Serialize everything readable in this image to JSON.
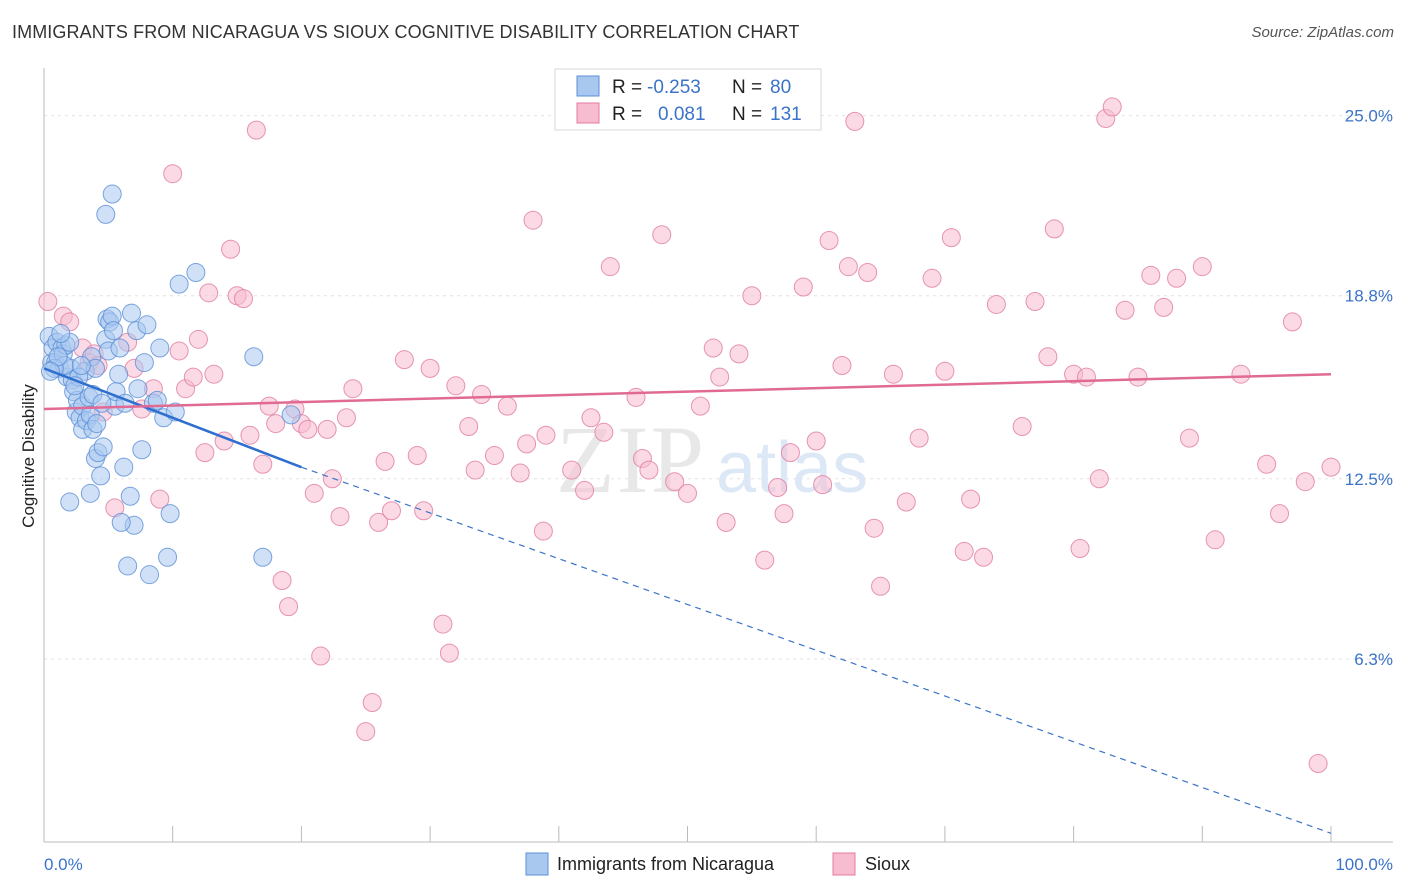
{
  "title": "IMMIGRANTS FROM NICARAGUA VS SIOUX COGNITIVE DISABILITY CORRELATION CHART",
  "source": "Source: ZipAtlas.com",
  "watermark": {
    "zip": "ZIP",
    "atlas": "atlas"
  },
  "legend": {
    "rows": [
      {
        "r_label": "R =",
        "r_value": "-0.253",
        "n_label": "N =",
        "n_value": "80",
        "color": "#a9c8f0",
        "stroke": "#5b8fd6"
      },
      {
        "r_label": "R =",
        "r_value": "0.081",
        "n_label": "N =",
        "n_value": "131",
        "color": "#f7bcd0",
        "stroke": "#e07ca0"
      }
    ]
  },
  "bottom_legend": [
    {
      "label": "Immigrants from Nicaragua",
      "color": "#a9c8f0",
      "stroke": "#5b8fd6"
    },
    {
      "label": "Sioux",
      "color": "#f7bcd0",
      "stroke": "#e07ca0"
    }
  ],
  "chart_data": {
    "type": "scatter",
    "title": "IMMIGRANTS FROM NICARAGUA VS SIOUX COGNITIVE DISABILITY CORRELATION CHART",
    "xlabel": "",
    "ylabel": "Cognitive Disability",
    "xlim": [
      0,
      100
    ],
    "ylim": [
      0,
      26.5
    ],
    "y_ticks": [
      6.3,
      12.5,
      18.8,
      25.0
    ],
    "y_tick_labels": [
      "6.3%",
      "12.5%",
      "18.8%",
      "25.0%"
    ],
    "x_tick_labels": [
      "0.0%",
      "100.0%"
    ],
    "grid": true,
    "series": [
      {
        "name": "Immigrants from Nicaragua",
        "color": "#a9c8f0",
        "stroke": "#5b8fd6",
        "trend": {
          "x0": 0,
          "y0": 16.3,
          "x1": 20,
          "y1": 12.9,
          "dash_to_x": 100,
          "dash_to_y": 0.3
        },
        "points": [
          [
            0.4,
            17.4
          ],
          [
            0.6,
            16.5
          ],
          [
            0.7,
            17.0
          ],
          [
            0.9,
            16.5
          ],
          [
            1.0,
            17.2
          ],
          [
            1.2,
            16.3
          ],
          [
            1.4,
            17.0
          ],
          [
            1.5,
            16.8
          ],
          [
            1.7,
            17.1
          ],
          [
            1.8,
            16.0
          ],
          [
            2.0,
            17.2
          ],
          [
            2.1,
            16.3
          ],
          [
            2.2,
            15.9
          ],
          [
            2.3,
            15.5
          ],
          [
            2.5,
            14.8
          ],
          [
            2.6,
            15.2
          ],
          [
            2.8,
            14.6
          ],
          [
            3.0,
            15.0
          ],
          [
            3.0,
            14.2
          ],
          [
            3.2,
            16.2
          ],
          [
            3.3,
            14.5
          ],
          [
            3.5,
            15.3
          ],
          [
            3.6,
            14.7
          ],
          [
            3.7,
            16.7
          ],
          [
            3.8,
            14.2
          ],
          [
            4.0,
            16.3
          ],
          [
            4.0,
            13.2
          ],
          [
            4.2,
            13.4
          ],
          [
            4.4,
            12.6
          ],
          [
            4.6,
            13.6
          ],
          [
            4.8,
            17.3
          ],
          [
            4.9,
            18.0
          ],
          [
            5.0,
            16.9
          ],
          [
            5.1,
            17.9
          ],
          [
            5.3,
            18.1
          ],
          [
            5.4,
            17.6
          ],
          [
            5.5,
            15.0
          ],
          [
            5.6,
            15.5
          ],
          [
            5.8,
            16.1
          ],
          [
            5.9,
            17.0
          ],
          [
            6.2,
            12.9
          ],
          [
            6.3,
            15.1
          ],
          [
            6.5,
            9.5
          ],
          [
            6.7,
            11.9
          ],
          [
            6.8,
            18.2
          ],
          [
            7.0,
            10.9
          ],
          [
            7.2,
            17.6
          ],
          [
            7.3,
            15.6
          ],
          [
            7.6,
            13.5
          ],
          [
            7.8,
            16.5
          ],
          [
            8.0,
            17.8
          ],
          [
            8.2,
            9.2
          ],
          [
            8.5,
            15.1
          ],
          [
            8.8,
            15.2
          ],
          [
            9.0,
            17.0
          ],
          [
            9.3,
            14.6
          ],
          [
            9.6,
            9.8
          ],
          [
            9.8,
            11.3
          ],
          [
            10.2,
            14.8
          ],
          [
            10.5,
            19.2
          ],
          [
            11.8,
            19.6
          ],
          [
            16.3,
            16.7
          ],
          [
            17.0,
            9.8
          ],
          [
            19.2,
            14.7
          ],
          [
            2.0,
            11.7
          ],
          [
            3.6,
            12.0
          ],
          [
            4.8,
            21.6
          ],
          [
            5.3,
            22.3
          ],
          [
            2.7,
            16.0
          ],
          [
            1.6,
            16.4
          ],
          [
            3.8,
            15.4
          ],
          [
            4.1,
            14.4
          ],
          [
            0.8,
            16.3
          ],
          [
            1.1,
            16.7
          ],
          [
            2.9,
            16.4
          ],
          [
            4.5,
            15.1
          ],
          [
            1.3,
            17.5
          ],
          [
            0.5,
            16.2
          ],
          [
            2.4,
            15.7
          ],
          [
            6.0,
            11.0
          ]
        ]
      },
      {
        "name": "Sioux",
        "color": "#f7bcd0",
        "stroke": "#e07ca0",
        "trend": {
          "x0": 0,
          "y0": 14.9,
          "x1": 100,
          "y1": 16.1
        },
        "points": [
          [
            0.3,
            18.6
          ],
          [
            1.5,
            18.1
          ],
          [
            2.0,
            17.9
          ],
          [
            3.0,
            17.0
          ],
          [
            3.5,
            16.5
          ],
          [
            3.9,
            16.8
          ],
          [
            4.2,
            16.4
          ],
          [
            4.6,
            14.8
          ],
          [
            5.5,
            11.5
          ],
          [
            6.5,
            17.2
          ],
          [
            7.0,
            16.3
          ],
          [
            7.6,
            14.9
          ],
          [
            8.5,
            15.6
          ],
          [
            9.0,
            11.8
          ],
          [
            10.0,
            23.0
          ],
          [
            10.5,
            16.9
          ],
          [
            11.0,
            15.6
          ],
          [
            11.6,
            16.0
          ],
          [
            12.0,
            17.3
          ],
          [
            12.5,
            13.4
          ],
          [
            12.8,
            18.9
          ],
          [
            13.2,
            16.1
          ],
          [
            14.0,
            13.8
          ],
          [
            14.5,
            20.4
          ],
          [
            15.0,
            18.8
          ],
          [
            15.5,
            18.7
          ],
          [
            16.0,
            14.0
          ],
          [
            16.5,
            24.5
          ],
          [
            17.0,
            13.0
          ],
          [
            17.5,
            15.0
          ],
          [
            18.0,
            14.4
          ],
          [
            18.5,
            9.0
          ],
          [
            19.0,
            8.1
          ],
          [
            19.5,
            14.9
          ],
          [
            20.0,
            14.4
          ],
          [
            20.5,
            14.2
          ],
          [
            21.0,
            12.0
          ],
          [
            21.5,
            6.4
          ],
          [
            22.0,
            14.2
          ],
          [
            22.4,
            12.5
          ],
          [
            23.0,
            11.2
          ],
          [
            23.5,
            14.6
          ],
          [
            24.0,
            15.6
          ],
          [
            25.0,
            3.8
          ],
          [
            25.5,
            4.8
          ],
          [
            26.0,
            11.0
          ],
          [
            26.5,
            13.1
          ],
          [
            27.0,
            11.4
          ],
          [
            28.0,
            16.6
          ],
          [
            29.0,
            13.3
          ],
          [
            29.5,
            11.4
          ],
          [
            30.0,
            16.3
          ],
          [
            31.0,
            7.5
          ],
          [
            31.5,
            6.5
          ],
          [
            32.0,
            15.7
          ],
          [
            33.0,
            14.3
          ],
          [
            33.5,
            12.8
          ],
          [
            34.0,
            15.4
          ],
          [
            35.0,
            13.3
          ],
          [
            36.0,
            15.0
          ],
          [
            37.0,
            12.7
          ],
          [
            37.5,
            13.7
          ],
          [
            38.0,
            21.4
          ],
          [
            38.8,
            10.7
          ],
          [
            39.0,
            14.0
          ],
          [
            41.0,
            12.8
          ],
          [
            42.0,
            12.1
          ],
          [
            42.5,
            14.6
          ],
          [
            43.5,
            14.1
          ],
          [
            44.0,
            19.8
          ],
          [
            46.0,
            15.3
          ],
          [
            46.5,
            13.2
          ],
          [
            47.0,
            12.8
          ],
          [
            48.0,
            20.9
          ],
          [
            49.0,
            12.4
          ],
          [
            50.0,
            12.0
          ],
          [
            51.0,
            15.0
          ],
          [
            52.0,
            17.0
          ],
          [
            52.5,
            16.0
          ],
          [
            53.0,
            11.0
          ],
          [
            54.0,
            16.8
          ],
          [
            55.0,
            18.8
          ],
          [
            56.0,
            9.7
          ],
          [
            57.0,
            12.2
          ],
          [
            57.5,
            11.3
          ],
          [
            58.0,
            13.4
          ],
          [
            59.0,
            19.1
          ],
          [
            60.0,
            13.8
          ],
          [
            60.5,
            12.3
          ],
          [
            61.0,
            20.7
          ],
          [
            62.0,
            16.4
          ],
          [
            62.5,
            19.8
          ],
          [
            63.0,
            24.8
          ],
          [
            64.0,
            19.6
          ],
          [
            64.5,
            10.8
          ],
          [
            65.0,
            8.8
          ],
          [
            66.0,
            16.1
          ],
          [
            67.0,
            11.7
          ],
          [
            68.0,
            13.9
          ],
          [
            69.0,
            19.4
          ],
          [
            70.0,
            16.2
          ],
          [
            70.5,
            20.8
          ],
          [
            71.5,
            10.0
          ],
          [
            72.0,
            11.8
          ],
          [
            73.0,
            9.8
          ],
          [
            74.0,
            18.5
          ],
          [
            76.0,
            14.3
          ],
          [
            77.0,
            18.6
          ],
          [
            78.0,
            16.7
          ],
          [
            78.5,
            21.1
          ],
          [
            80.0,
            16.1
          ],
          [
            80.5,
            10.1
          ],
          [
            81.0,
            16.0
          ],
          [
            82.0,
            12.5
          ],
          [
            82.5,
            24.9
          ],
          [
            83.0,
            25.3
          ],
          [
            84.0,
            18.3
          ],
          [
            85.0,
            16.0
          ],
          [
            86.0,
            19.5
          ],
          [
            87.0,
            18.4
          ],
          [
            88.0,
            19.4
          ],
          [
            89.0,
            13.9
          ],
          [
            90.0,
            19.8
          ],
          [
            91.0,
            10.4
          ],
          [
            93.0,
            16.1
          ],
          [
            95.0,
            13.0
          ],
          [
            96.0,
            11.3
          ],
          [
            97.0,
            17.9
          ],
          [
            98.0,
            12.4
          ],
          [
            99.0,
            2.7
          ],
          [
            100.0,
            12.9
          ]
        ]
      }
    ]
  }
}
